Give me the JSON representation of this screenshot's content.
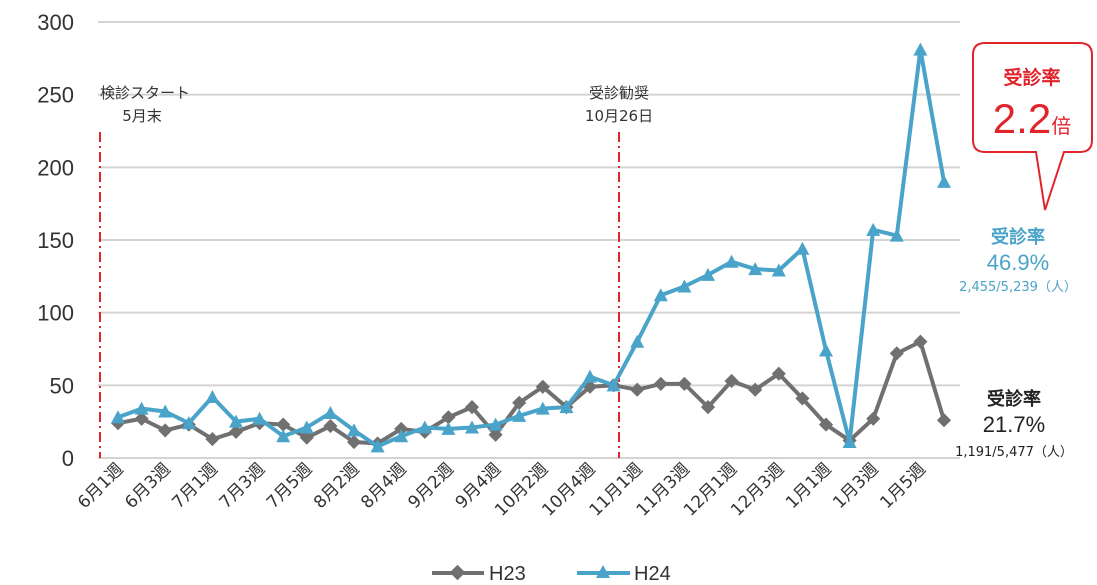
{
  "chart_data": {
    "type": "line",
    "ylim": [
      0,
      300
    ],
    "yticks": [
      "0",
      "50",
      "100",
      "150",
      "200",
      "250",
      "300"
    ],
    "categories": [
      "6月1週",
      "",
      "6月3週",
      "",
      "7月1週",
      "",
      "7月3週",
      "",
      "7月5週",
      "",
      "8月2週",
      "",
      "8月4週",
      "",
      "9月2週",
      "",
      "9月4週",
      "",
      "10月2週",
      "",
      "10月4週",
      "",
      "11月1週",
      "",
      "11月3週",
      "",
      "12月1週",
      "",
      "12月3週",
      "",
      "1月1週",
      "",
      "1月3週",
      "",
      "1月5週",
      ""
    ],
    "series": [
      {
        "name": "H23",
        "color": "#707070",
        "marker": "diamond",
        "values": [
          24,
          27,
          19,
          23,
          13,
          18,
          24,
          23,
          14,
          22,
          11,
          10,
          20,
          18,
          28,
          35,
          16,
          38,
          49,
          35,
          49,
          50,
          47,
          51,
          51,
          35,
          53,
          47,
          58,
          41,
          23,
          12,
          27,
          72,
          80,
          26
        ]
      },
      {
        "name": "H24",
        "color": "#4aa3c8",
        "marker": "triangle",
        "values": [
          28,
          34,
          32,
          24,
          42,
          25,
          27,
          15,
          21,
          31,
          19,
          8,
          15,
          21,
          20,
          21,
          23,
          29,
          34,
          35,
          56,
          50,
          80,
          112,
          118,
          126,
          135,
          130,
          129,
          144,
          74,
          11,
          157,
          153,
          281,
          190
        ]
      }
    ],
    "vlines": [
      {
        "after_index": 0,
        "label_line1": "検診スタート",
        "label_line2": "5月末"
      },
      {
        "after_index": 20.5,
        "label_line1": "受診勧奨",
        "label_line2": "10月26日"
      }
    ],
    "callout": {
      "line1": "受診率",
      "big": "2.2",
      "unit": "倍"
    },
    "h24_note": {
      "title": "受診率",
      "pct": "46.9%",
      "detail": "2,455/5,239（人）"
    },
    "h23_note": {
      "title": "受診率",
      "pct": "21.7%",
      "detail": "1,191/5,477（人）"
    },
    "legend_position": "bottom",
    "grid": true
  }
}
